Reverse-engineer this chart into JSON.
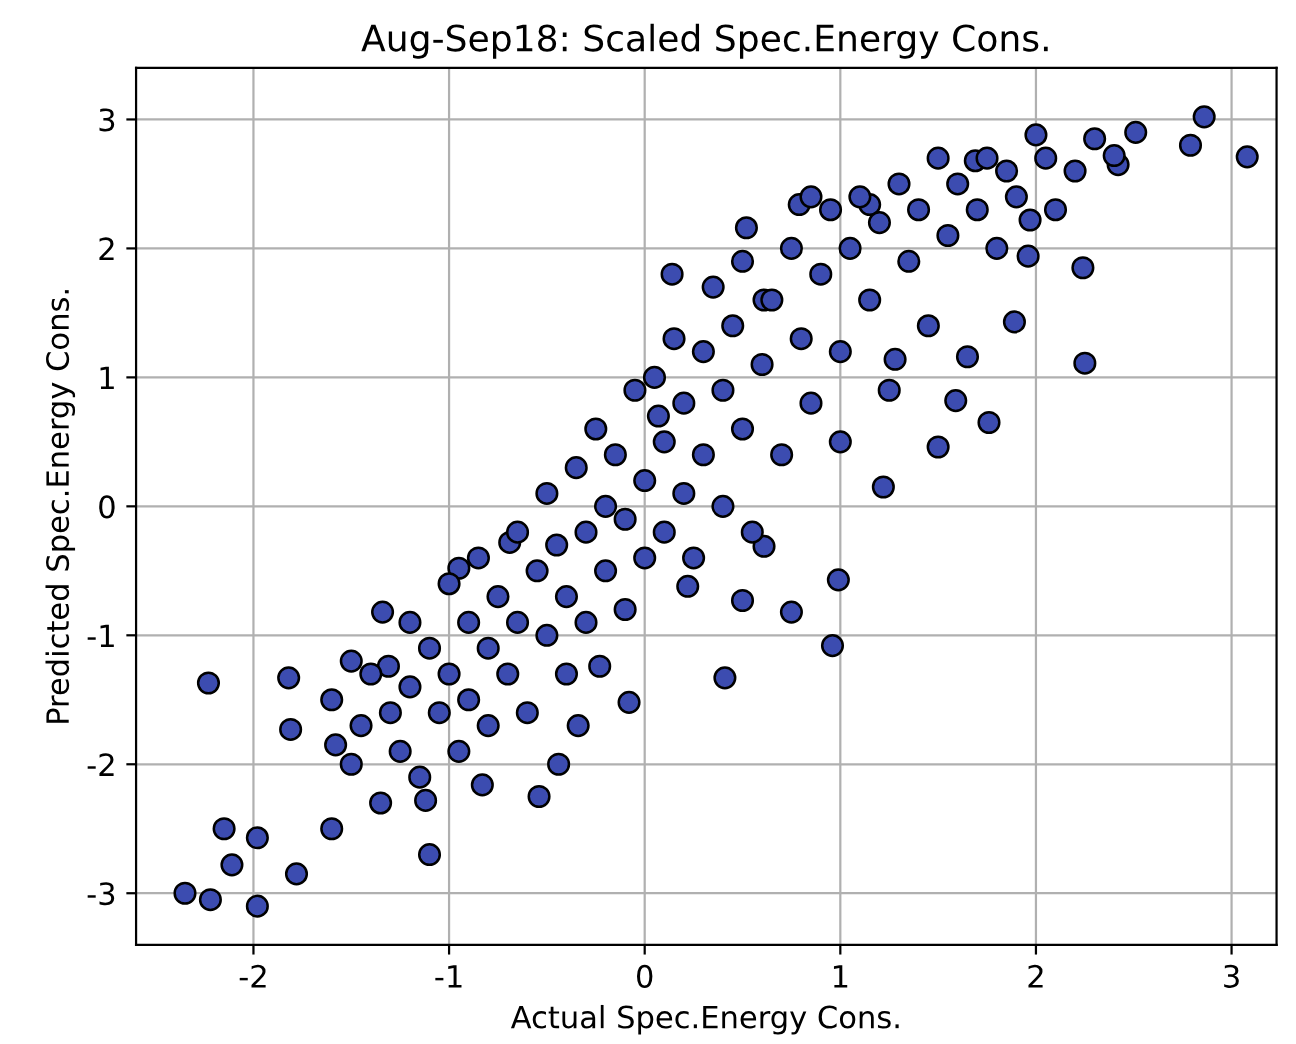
{
  "chart_data": {
    "type": "scatter",
    "title": "Aug-Sep18: Scaled Spec.Energy Cons.",
    "xlabel": "Actual Spec.Energy Cons.",
    "ylabel": "Predicted Spec.Energy Cons.",
    "xlim": [
      -2.6,
      3.23
    ],
    "ylim": [
      -3.4,
      3.4
    ],
    "xticks": [
      -2,
      -1,
      0,
      1,
      2,
      3
    ],
    "yticks": [
      -3,
      -2,
      -1,
      0,
      1,
      2,
      3
    ],
    "grid": true,
    "marker": "circle",
    "series": [
      {
        "color": "#3c4cb0",
        "x": [
          -2.35,
          -2.22,
          -2.23,
          -2.15,
          -2.11,
          -1.98,
          -1.98,
          -1.78,
          -1.82,
          -1.81,
          -1.6,
          -1.58,
          -1.34,
          -1.31,
          -1.1,
          -1.12,
          -0.83,
          -0.95,
          -0.69,
          -0.54,
          -0.44,
          -0.34,
          -0.08,
          -0.23,
          0.07,
          0.14,
          0.41,
          0.22,
          0.5,
          0.61,
          0.96,
          0.99,
          0.75,
          1.5,
          1.59,
          1.65,
          1.76,
          1.89,
          1.28,
          1.22,
          2.24,
          2.25,
          2.42,
          2.79,
          2.86,
          3.08,
          2.51,
          2.4,
          2.0,
          1.97,
          1.96,
          1.69,
          1.15,
          0.79,
          0.85,
          0.52,
          0.61,
          -1.6,
          -1.5,
          -1.5,
          -1.45,
          -1.4,
          -1.35,
          -1.3,
          -1.25,
          -1.2,
          -1.2,
          -1.15,
          -1.1,
          -1.05,
          -1.0,
          -1.0,
          -0.95,
          -0.9,
          -0.9,
          -0.85,
          -0.8,
          -0.8,
          -0.75,
          -0.7,
          -0.65,
          -0.65,
          -0.6,
          -0.55,
          -0.5,
          -0.5,
          -0.45,
          -0.4,
          -0.4,
          -0.35,
          -0.3,
          -0.3,
          -0.25,
          -0.2,
          -0.2,
          -0.15,
          -0.1,
          -0.1,
          -0.05,
          0.0,
          0.0,
          0.05,
          0.1,
          0.1,
          0.15,
          0.2,
          0.2,
          0.25,
          0.3,
          0.3,
          0.35,
          0.4,
          0.4,
          0.45,
          0.5,
          0.5,
          0.55,
          0.6,
          0.65,
          0.7,
          0.75,
          0.8,
          0.85,
          0.9,
          0.95,
          1.0,
          1.0,
          1.05,
          1.1,
          1.15,
          1.2,
          1.25,
          1.3,
          1.35,
          1.4,
          1.45,
          1.5,
          1.55,
          1.6,
          1.7,
          1.75,
          1.8,
          1.85,
          1.9,
          2.05,
          2.1,
          2.2,
          2.3
        ],
        "values": [
          -3.0,
          -3.05,
          -1.37,
          -2.5,
          -2.78,
          -2.57,
          -3.1,
          -2.85,
          -1.33,
          -1.73,
          -2.5,
          -1.85,
          -0.82,
          -1.24,
          -2.7,
          -2.28,
          -2.16,
          -0.48,
          -0.28,
          -2.25,
          -2.0,
          -1.7,
          -1.52,
          -1.24,
          0.7,
          1.8,
          -1.33,
          -0.62,
          -0.73,
          -0.31,
          -1.08,
          -0.57,
          -0.82,
          0.46,
          0.82,
          1.16,
          0.65,
          1.43,
          1.14,
          0.15,
          1.85,
          1.11,
          2.65,
          2.8,
          3.02,
          2.71,
          2.9,
          2.72,
          2.88,
          2.22,
          1.94,
          2.68,
          2.34,
          2.34,
          2.4,
          2.16,
          1.6,
          -1.5,
          -1.2,
          -2.0,
          -1.7,
          -1.3,
          -2.3,
          -1.6,
          -1.9,
          -0.9,
          -1.4,
          -2.1,
          -1.1,
          -1.6,
          -0.6,
          -1.3,
          -1.9,
          -0.9,
          -1.5,
          -0.4,
          -1.1,
          -1.7,
          -0.7,
          -1.3,
          -0.2,
          -0.9,
          -1.6,
          -0.5,
          0.1,
          -1.0,
          -0.3,
          -0.7,
          -1.3,
          0.3,
          -0.2,
          -0.9,
          0.6,
          0.0,
          -0.5,
          0.4,
          -0.1,
          -0.8,
          0.9,
          0.2,
          -0.4,
          1.0,
          0.5,
          -0.2,
          1.3,
          0.8,
          0.1,
          -0.4,
          1.2,
          0.4,
          1.7,
          0.9,
          0.0,
          1.4,
          0.6,
          1.9,
          -0.2,
          1.1,
          1.6,
          0.4,
          2.0,
          1.3,
          0.8,
          1.8,
          2.3,
          1.2,
          0.5,
          2.0,
          2.4,
          1.6,
          2.2,
          0.9,
          2.5,
          1.9,
          2.3,
          1.4,
          2.7,
          2.1,
          2.5,
          2.3,
          2.7,
          2.0,
          2.6,
          2.4,
          2.7,
          2.3,
          2.6,
          2.85
        ]
      }
    ]
  }
}
